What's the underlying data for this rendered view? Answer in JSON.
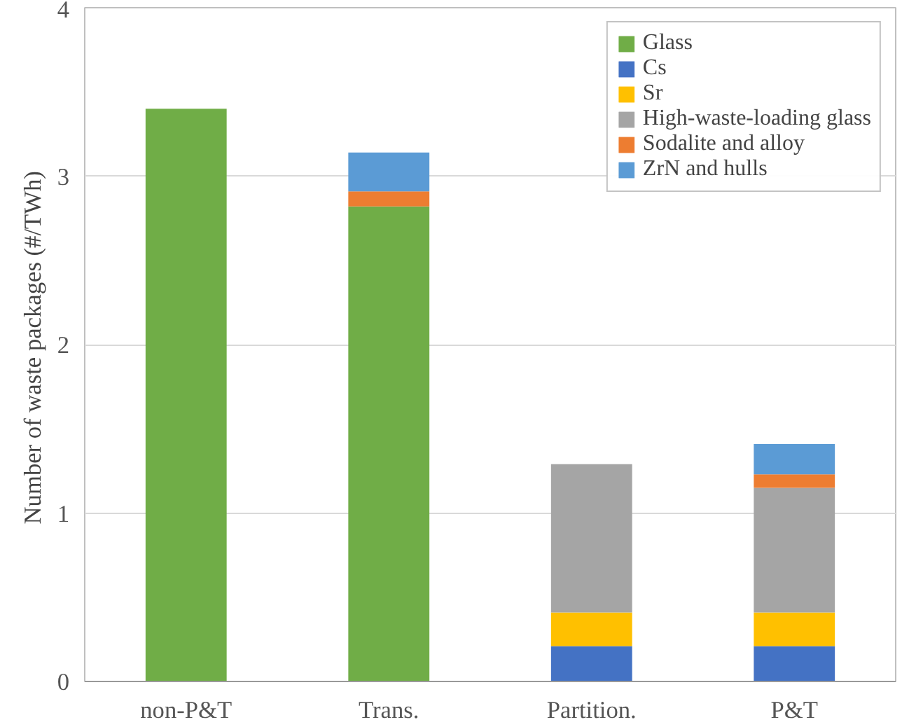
{
  "chart_data": {
    "type": "bar",
    "stacked": true,
    "ylabel": "Number of waste packages  (#/TWh)",
    "categories": [
      "non-P&T",
      "Trans.",
      "Partition.",
      "P&T"
    ],
    "series": [
      {
        "name": "Glass",
        "color": "#70ad47",
        "values": [
          3.4,
          2.82,
          null,
          null
        ]
      },
      {
        "name": "Cs",
        "color": "#4472c4",
        "values": [
          null,
          null,
          0.21,
          0.21
        ]
      },
      {
        "name": "Sr",
        "color": "#ffc000",
        "values": [
          null,
          null,
          0.2,
          0.2
        ]
      },
      {
        "name": "High-waste-loading glass",
        "color": "#a5a5a5",
        "values": [
          null,
          null,
          0.88,
          0.74
        ]
      },
      {
        "name": "Sodalite and alloy",
        "color": "#ed7d31",
        "values": [
          null,
          0.09,
          null,
          0.08
        ]
      },
      {
        "name": "ZrN and hulls",
        "color": "#5b9bd5",
        "values": [
          null,
          0.23,
          null,
          0.18
        ]
      }
    ],
    "ylim": [
      0,
      4
    ],
    "yticks": [
      0,
      1,
      2,
      3,
      4
    ],
    "grid": "y",
    "legend": "top right"
  }
}
